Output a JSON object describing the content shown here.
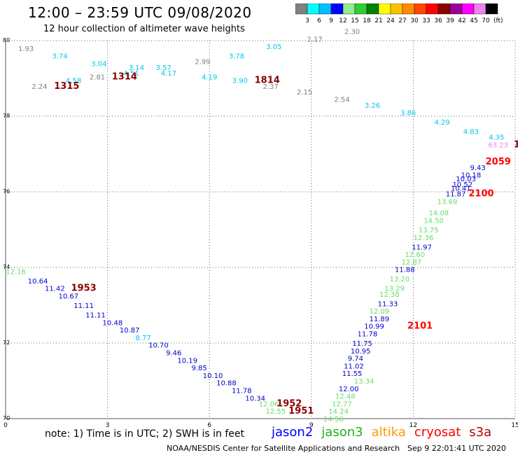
{
  "header": {
    "title": "12:00 – 23:59 UTC 09/08/2020",
    "subtitle": "12 hour collection of altimeter wave heights"
  },
  "colorbar": {
    "unit_label": "(ft)",
    "ticks": [
      "3",
      "6",
      "9",
      "12",
      "15",
      "18",
      "21",
      "24",
      "27",
      "30",
      "33",
      "36",
      "39",
      "42",
      "45",
      "70"
    ],
    "colors": [
      "#808080",
      "#00ffff",
      "#00bfff",
      "#0000ff",
      "#90ee90",
      "#32cd32",
      "#008000",
      "#ffff00",
      "#ffc000",
      "#ff8c00",
      "#ff4500",
      "#ff0000",
      "#8b0000",
      "#9b009b",
      "#ff00ff",
      "#ee82ee",
      "#000000"
    ]
  },
  "footer": {
    "note": "note:  1) Time is in UTC;  2) SWH is in feet",
    "legend": [
      {
        "name": "jason2",
        "color": "#0000ff"
      },
      {
        "name": "jason3",
        "color": "#20b020"
      },
      {
        "name": "altika",
        "color": "#ff9900"
      },
      {
        "name": "cryosat",
        "color": "#ff0000"
      },
      {
        "name": "s3a",
        "color": "#b00000"
      }
    ],
    "credit": "NOAA/NESDIS Center for Satellite Applications and Research",
    "timestamp": "Sep  9 22:01:41 UTC 2020"
  },
  "chart_data": {
    "type": "scatter",
    "xlim": [
      0,
      15
    ],
    "ylim": [
      70,
      80
    ],
    "x_ticks": [
      "0",
      "3",
      "6",
      "9",
      "12",
      "15"
    ],
    "y_ticks": [
      "70",
      "72",
      "74",
      "76",
      "78",
      "80"
    ],
    "grid": true,
    "points": [
      {
        "x": 0.6,
        "y": 79.8,
        "label": "1.93",
        "color": "#808080"
      },
      {
        "x": 1.6,
        "y": 79.6,
        "label": "3.74",
        "color": "#00c8e8"
      },
      {
        "x": 2.75,
        "y": 79.4,
        "label": "3.04",
        "color": "#00c8e8"
      },
      {
        "x": 3.85,
        "y": 79.3,
        "label": "3.14",
        "color": "#00c8e8"
      },
      {
        "x": 3.7,
        "y": 79.15,
        "label": "4.51",
        "color": "#00c8e8"
      },
      {
        "x": 4.65,
        "y": 79.3,
        "label": "3.57",
        "color": "#00c8e8"
      },
      {
        "x": 4.8,
        "y": 79.15,
        "label": "4.17",
        "color": "#00c8e8"
      },
      {
        "x": 5.8,
        "y": 79.45,
        "label": "2.99",
        "color": "#808080"
      },
      {
        "x": 6.8,
        "y": 79.6,
        "label": "3.78",
        "color": "#00c8e8"
      },
      {
        "x": 7.9,
        "y": 79.85,
        "label": "3.05",
        "color": "#00c8e8"
      },
      {
        "x": 9.1,
        "y": 80.05,
        "label": "2.17",
        "color": "#808080"
      },
      {
        "x": 10.2,
        "y": 80.25,
        "label": "2.30",
        "color": "#808080"
      },
      {
        "x": 2.0,
        "y": 78.95,
        "label": "4.58",
        "color": "#00c8e8"
      },
      {
        "x": 2.7,
        "y": 79.05,
        "label": "2.81",
        "color": "#808080"
      },
      {
        "x": 3.5,
        "y": 79.05,
        "label": "1314",
        "color": "#8b0000"
      },
      {
        "x": 6.0,
        "y": 79.05,
        "label": "4.19",
        "color": "#00c8e8"
      },
      {
        "x": 6.9,
        "y": 78.95,
        "label": "3.90",
        "color": "#00c8e8"
      },
      {
        "x": 7.7,
        "y": 78.95,
        "label": "1814",
        "color": "#8b0000"
      },
      {
        "x": 7.8,
        "y": 78.8,
        "label": "2.37",
        "color": "#808080"
      },
      {
        "x": 1.0,
        "y": 78.8,
        "label": "2.24",
        "color": "#808080"
      },
      {
        "x": 1.8,
        "y": 78.8,
        "label": "1315",
        "color": "#8b0000"
      },
      {
        "x": 8.8,
        "y": 78.65,
        "label": "2.15",
        "color": "#808080"
      },
      {
        "x": 9.9,
        "y": 78.45,
        "label": "2.54",
        "color": "#808080"
      },
      {
        "x": 10.8,
        "y": 78.3,
        "label": "3.26",
        "color": "#00c8e8"
      },
      {
        "x": 11.85,
        "y": 78.1,
        "label": "3.86",
        "color": "#00c8e8"
      },
      {
        "x": 12.85,
        "y": 77.85,
        "label": "4.29",
        "color": "#00c8e8"
      },
      {
        "x": 13.7,
        "y": 77.6,
        "label": "4.83",
        "color": "#00c8e8"
      },
      {
        "x": 14.45,
        "y": 77.45,
        "label": "4.35",
        "color": "#00c8e8"
      },
      {
        "x": 14.5,
        "y": 77.25,
        "label": "63.23",
        "color": "#ee82ee"
      },
      {
        "x": 15.05,
        "y": 77.25,
        "label": "1",
        "color": "#8b0000"
      },
      {
        "x": 14.5,
        "y": 76.8,
        "label": "2059",
        "color": "#ff0000"
      },
      {
        "x": 13.9,
        "y": 76.65,
        "label": "9.43",
        "color": "#0000cc"
      },
      {
        "x": 13.7,
        "y": 76.45,
        "label": "10.18",
        "color": "#0000cc"
      },
      {
        "x": 13.55,
        "y": 76.35,
        "label": "10.03",
        "color": "#0000cc"
      },
      {
        "x": 13.45,
        "y": 76.2,
        "label": "10.52",
        "color": "#0000cc"
      },
      {
        "x": 13.4,
        "y": 76.1,
        "label": "10.41",
        "color": "#0000cc"
      },
      {
        "x": 13.25,
        "y": 75.95,
        "label": "11.87",
        "color": "#0000cc"
      },
      {
        "x": 14.0,
        "y": 75.95,
        "label": "2100",
        "color": "#ff0000"
      },
      {
        "x": 13.0,
        "y": 75.75,
        "label": "13.69",
        "color": "#66dd66"
      },
      {
        "x": 12.75,
        "y": 75.45,
        "label": "14.08",
        "color": "#66dd66"
      },
      {
        "x": 12.6,
        "y": 75.25,
        "label": "14.50",
        "color": "#66dd66"
      },
      {
        "x": 12.45,
        "y": 75.0,
        "label": "13.75",
        "color": "#66dd66"
      },
      {
        "x": 12.3,
        "y": 74.8,
        "label": "12.36",
        "color": "#66dd66"
      },
      {
        "x": 12.25,
        "y": 74.55,
        "label": "11.97",
        "color": "#0000cc"
      },
      {
        "x": 12.05,
        "y": 74.35,
        "label": "12.60",
        "color": "#66dd66"
      },
      {
        "x": 11.95,
        "y": 74.15,
        "label": "12.87",
        "color": "#66dd66"
      },
      {
        "x": 11.75,
        "y": 73.95,
        "label": "11.88",
        "color": "#0000cc"
      },
      {
        "x": 11.6,
        "y": 73.7,
        "label": "13.20",
        "color": "#66dd66"
      },
      {
        "x": 11.45,
        "y": 73.45,
        "label": "13.29",
        "color": "#66dd66"
      },
      {
        "x": 11.3,
        "y": 73.3,
        "label": "12.38",
        "color": "#66dd66"
      },
      {
        "x": 11.25,
        "y": 73.05,
        "label": "11.33",
        "color": "#0000cc"
      },
      {
        "x": 11.0,
        "y": 72.85,
        "label": "12.09",
        "color": "#66dd66"
      },
      {
        "x": 11.0,
        "y": 72.65,
        "label": "11.89",
        "color": "#0000cc"
      },
      {
        "x": 12.2,
        "y": 72.45,
        "label": "2101",
        "color": "#ff0000"
      },
      {
        "x": 10.85,
        "y": 72.45,
        "label": "10.99",
        "color": "#0000cc"
      },
      {
        "x": 10.65,
        "y": 72.25,
        "label": "11.78",
        "color": "#0000cc"
      },
      {
        "x": 10.5,
        "y": 72.0,
        "label": "11.75",
        "color": "#0000cc"
      },
      {
        "x": 10.45,
        "y": 71.8,
        "label": "10.95",
        "color": "#0000cc"
      },
      {
        "x": 10.3,
        "y": 71.6,
        "label": "9.74",
        "color": "#0000cc"
      },
      {
        "x": 10.25,
        "y": 71.4,
        "label": "11.02",
        "color": "#0000cc"
      },
      {
        "x": 10.2,
        "y": 71.2,
        "label": "11.55",
        "color": "#0000cc"
      },
      {
        "x": 10.55,
        "y": 71.0,
        "label": "13.34",
        "color": "#66dd66"
      },
      {
        "x": 10.1,
        "y": 70.8,
        "label": "12.00",
        "color": "#0000cc"
      },
      {
        "x": 10.0,
        "y": 70.6,
        "label": "12.48",
        "color": "#66dd66"
      },
      {
        "x": 9.9,
        "y": 70.4,
        "label": "12.77",
        "color": "#66dd66"
      },
      {
        "x": 9.8,
        "y": 70.2,
        "label": "14.24",
        "color": "#66dd66"
      },
      {
        "x": 9.65,
        "y": 70.0,
        "label": "14.56",
        "color": "#66dd66"
      },
      {
        "x": 0.3,
        "y": 73.9,
        "label": "12.16",
        "color": "#66dd66"
      },
      {
        "x": 0.95,
        "y": 73.65,
        "label": "10.64",
        "color": "#0000cc"
      },
      {
        "x": 1.45,
        "y": 73.45,
        "label": "11.42",
        "color": "#0000cc"
      },
      {
        "x": 2.3,
        "y": 73.45,
        "label": "1953",
        "color": "#8b0000"
      },
      {
        "x": 1.85,
        "y": 73.25,
        "label": "10.67",
        "color": "#0000cc"
      },
      {
        "x": 2.3,
        "y": 73.0,
        "label": "11.11",
        "color": "#0000cc"
      },
      {
        "x": 2.65,
        "y": 72.75,
        "label": "11.11",
        "color": "#0000cc"
      },
      {
        "x": 3.15,
        "y": 72.55,
        "label": "10.48",
        "color": "#0000cc"
      },
      {
        "x": 3.65,
        "y": 72.35,
        "label": "10.87",
        "color": "#0000cc"
      },
      {
        "x": 4.05,
        "y": 72.15,
        "label": "8.77",
        "color": "#00bfff"
      },
      {
        "x": 4.5,
        "y": 71.95,
        "label": "10.70",
        "color": "#0000cc"
      },
      {
        "x": 4.95,
        "y": 71.75,
        "label": "9.46",
        "color": "#0000cc"
      },
      {
        "x": 5.35,
        "y": 71.55,
        "label": "10.19",
        "color": "#0000cc"
      },
      {
        "x": 5.7,
        "y": 71.35,
        "label": "9.85",
        "color": "#0000cc"
      },
      {
        "x": 6.1,
        "y": 71.15,
        "label": "10.10",
        "color": "#0000cc"
      },
      {
        "x": 6.5,
        "y": 70.95,
        "label": "10.88",
        "color": "#0000cc"
      },
      {
        "x": 6.95,
        "y": 70.75,
        "label": "11.78",
        "color": "#0000cc"
      },
      {
        "x": 7.35,
        "y": 70.55,
        "label": "10.34",
        "color": "#0000cc"
      },
      {
        "x": 7.75,
        "y": 70.4,
        "label": "12.06",
        "color": "#66dd66"
      },
      {
        "x": 8.35,
        "y": 70.4,
        "label": "1952",
        "color": "#8b0000"
      },
      {
        "x": 7.95,
        "y": 70.2,
        "label": "12.55",
        "color": "#66dd66"
      },
      {
        "x": 8.7,
        "y": 70.2,
        "label": "1951",
        "color": "#8b0000"
      }
    ]
  }
}
